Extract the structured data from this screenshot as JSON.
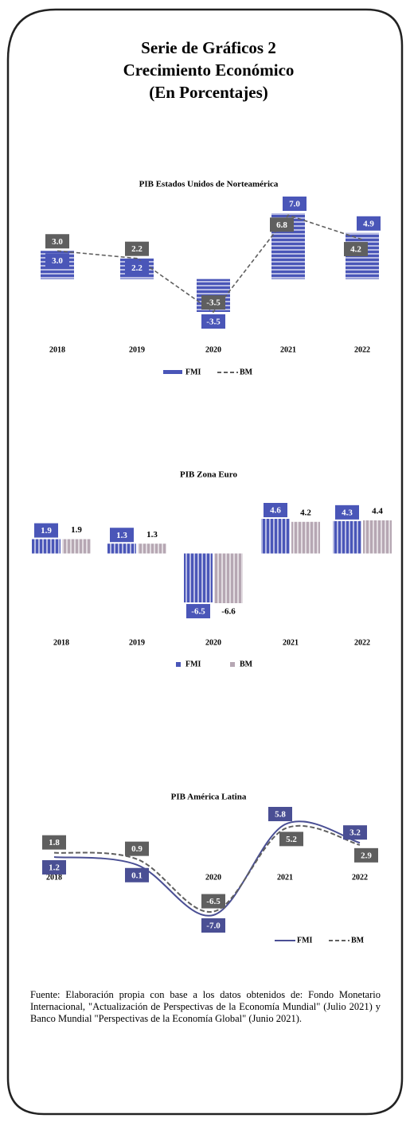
{
  "title": [
    "Serie de Gráficos 2",
    "Crecimiento Económico",
    "(En Porcentajes)"
  ],
  "chart_data": [
    {
      "type": "combo",
      "title": "PIB Estados Unidos de Norteamérica",
      "categories": [
        "2018",
        "2019",
        "2020",
        "2021",
        "2022"
      ],
      "series": [
        {
          "name": "FMI",
          "color": "#4a56b8",
          "style": "bar",
          "values": [
            3.0,
            2.2,
            -3.5,
            7.0,
            4.9
          ],
          "value_labels": [
            "3.0",
            "2.2",
            "-3.5",
            "7.0",
            "4.9"
          ]
        },
        {
          "name": "BM",
          "color": "#5f5f5f",
          "style": "dashed",
          "values": [
            3.0,
            2.2,
            -3.5,
            6.8,
            4.2
          ],
          "value_labels": [
            "3.0",
            "2.2",
            "-3.5",
            "6.8",
            "4.2"
          ]
        }
      ]
    },
    {
      "type": "bar",
      "title": "PIB Zona Euro",
      "categories": [
        "2018",
        "2019",
        "2020",
        "2021",
        "2022"
      ],
      "series": [
        {
          "name": "FMI",
          "color": "#4a56b8",
          "values": [
            1.9,
            1.3,
            -6.5,
            4.6,
            4.3
          ]
        },
        {
          "name": "BM",
          "color": "#b6a7b3",
          "values": [
            1.9,
            1.3,
            -6.6,
            4.2,
            4.4
          ]
        }
      ]
    },
    {
      "type": "line",
      "title": "PIB América Latina",
      "categories": [
        "2018",
        "2019",
        "2020",
        "2021",
        "2022"
      ],
      "series": [
        {
          "name": "FMI",
          "color": "#4a4f94",
          "style": "solid",
          "values": [
            1.2,
            0.1,
            -7.0,
            5.8,
            3.2
          ],
          "value_labels": [
            "1.2",
            "0.1",
            "-7.0",
            "5.8",
            "3.2"
          ]
        },
        {
          "name": "BM",
          "color": "#5f5f5f",
          "style": "dashed",
          "values": [
            1.8,
            0.9,
            -6.5,
            5.2,
            2.9
          ],
          "value_labels": [
            "1.8",
            "0.9",
            "-6.5",
            "5.2",
            "2.9"
          ]
        }
      ]
    }
  ],
  "source": "Fuente: Elaboración propia con base a los datos obtenidos de: Fondo Monetario Internacional, \"Actualización de Perspectivas de la Economía Mundial\" (Julio 2021) y Banco Mundial \"Perspectivas de la Economía Global\" (Junio 2021)."
}
